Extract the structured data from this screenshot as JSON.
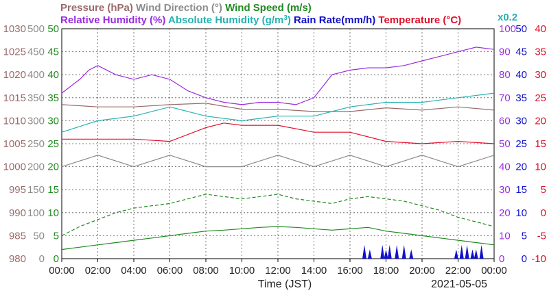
{
  "chart_data": {
    "type": "line",
    "date": "2021-05-05",
    "xlabel": "Time (JST)",
    "x_ticks": [
      "00:00",
      "02:00",
      "04:00",
      "06:00",
      "08:00",
      "10:00",
      "12:00",
      "14:00",
      "16:00",
      "18:00",
      "20:00",
      "22:00",
      "00:00"
    ],
    "grid": true,
    "legend_row1": [
      {
        "text": "Pressure (hPa)",
        "color": "#9a6a6a"
      },
      {
        "text": "Wind Direction (°)",
        "color": "#8c8c8c"
      },
      {
        "text": "Wind Speed (m/s)",
        "color": "#1f8a1f"
      }
    ],
    "legend_row2": [
      {
        "text": "Relative Humidity (%)",
        "color": "#9a2be0"
      },
      {
        "text": "Absolute Humidity (g/m",
        "color": "#26b2b2"
      },
      {
        "text": "3",
        "color": "#26b2b2"
      },
      {
        "text": ")",
        "color": "#26b2b2"
      },
      {
        "text": "Rain Rate(mm/h)",
        "color": "#1010cc"
      },
      {
        "text": "Temperature (°C)",
        "color": "#e0102a"
      }
    ],
    "scale_note": {
      "text": "x0.2",
      "color": "#26b2b2"
    },
    "axes": [
      {
        "id": "pressure",
        "color": "#9a6a6a",
        "side": "left",
        "ticks": [
          "1030",
          "1025",
          "1020",
          "1015",
          "1010",
          "1005",
          "1000",
          "995",
          "990",
          "985",
          "980"
        ],
        "range": [
          980,
          1030
        ]
      },
      {
        "id": "wind_direction",
        "color": "#8c8c8c",
        "side": "left",
        "ticks": [
          "500",
          "450",
          "400",
          "350",
          "300",
          "250",
          "200",
          "150",
          "100",
          "50",
          "0"
        ],
        "range": [
          0,
          500
        ]
      },
      {
        "id": "wind_speed",
        "color": "#1f8a1f",
        "side": "left",
        "ticks": [
          "50",
          "45",
          "40",
          "35",
          "30",
          "25",
          "20",
          "15",
          "10",
          "5",
          "0"
        ],
        "range": [
          0,
          50
        ]
      },
      {
        "id": "relative_humidity",
        "color": "#9a2be0",
        "side": "right",
        "ticks": [
          "100",
          "90",
          "80",
          "70",
          "60",
          "50",
          "40",
          "30",
          "20",
          "10",
          "0"
        ],
        "range": [
          0,
          100
        ]
      },
      {
        "id": "rain_rate",
        "color": "#1010cc",
        "side": "right",
        "ticks": [
          "50",
          "45",
          "40",
          "35",
          "30",
          "25",
          "20",
          "15",
          "10",
          "5",
          "0"
        ],
        "range": [
          0,
          50
        ]
      },
      {
        "id": "temperature",
        "color": "#e0102a",
        "side": "right",
        "ticks": [
          "40",
          "35",
          "30",
          "25",
          "20",
          "15",
          "10",
          "5",
          "0",
          "-5",
          "-10"
        ],
        "range": [
          -10,
          40
        ]
      }
    ],
    "series": [
      {
        "name": "Pressure (hPa)",
        "axis": "pressure",
        "color": "#9a6a6a",
        "style": "solid",
        "x": [
          0,
          2,
          4,
          6,
          8,
          10,
          12,
          14,
          16,
          18,
          20,
          22,
          24
        ],
        "y": [
          1013.5,
          1013.0,
          1013.0,
          1013.5,
          1013.8,
          1012.5,
          1012.5,
          1012.0,
          1012.0,
          1012.8,
          1012.3,
          1013.0,
          1012.3
        ]
      },
      {
        "name": "Wind Direction (°)",
        "axis": "wind_direction",
        "color": "#8c8c8c",
        "style": "solid",
        "x": [
          0,
          2,
          4,
          6,
          8,
          10,
          12,
          14,
          16,
          18,
          20,
          22,
          24
        ],
        "y": [
          200,
          225,
          200,
          225,
          200,
          200,
          225,
          200,
          225,
          200,
          225,
          200,
          225
        ]
      },
      {
        "name": "Wind Speed mean (m/s)",
        "axis": "wind_speed",
        "color": "#1f8a1f",
        "style": "solid",
        "x": [
          0,
          1,
          2,
          3,
          4,
          5,
          6,
          7,
          8,
          9,
          10,
          11,
          12,
          13,
          14,
          15,
          16,
          17,
          18,
          19,
          20,
          21,
          22,
          23,
          24
        ],
        "y": [
          2.0,
          2.5,
          3.0,
          3.5,
          4.0,
          4.5,
          5.0,
          5.5,
          6.0,
          6.2,
          6.5,
          6.8,
          7.0,
          6.8,
          6.5,
          6.2,
          6.5,
          6.8,
          6.0,
          5.5,
          5.0,
          4.5,
          4.0,
          3.5,
          3.0
        ]
      },
      {
        "name": "Wind Speed max (m/s)",
        "axis": "wind_speed",
        "color": "#1f8a1f",
        "style": "dashed",
        "x": [
          0,
          1,
          2,
          3,
          4,
          5,
          6,
          7,
          8,
          9,
          10,
          11,
          12,
          13,
          14,
          15,
          16,
          17,
          18,
          19,
          20,
          21,
          22,
          23,
          24
        ],
        "y": [
          5.0,
          7.0,
          8.5,
          10.0,
          11.0,
          11.5,
          12.0,
          13.0,
          14.0,
          13.5,
          13.0,
          13.5,
          14.0,
          13.0,
          12.5,
          12.0,
          13.0,
          13.5,
          13.0,
          12.5,
          11.5,
          10.5,
          9.0,
          8.0,
          7.0
        ]
      },
      {
        "name": "Relative Humidity (%)",
        "axis": "relative_humidity",
        "color": "#9a2be0",
        "style": "solid",
        "x": [
          0,
          1,
          1.5,
          2,
          3,
          4,
          5,
          6,
          7,
          8,
          9,
          10,
          11,
          12,
          13,
          14,
          15,
          16,
          17,
          18,
          19,
          20,
          21,
          22,
          23,
          24
        ],
        "y": [
          72,
          78,
          82,
          84,
          80,
          78,
          80,
          78,
          73,
          70,
          68,
          67,
          68,
          68,
          67,
          70,
          80,
          82,
          83,
          83,
          84,
          86,
          88,
          90,
          92,
          91
        ]
      },
      {
        "name": "Absolute Humidity (g/m3) x0.2",
        "axis": "relative_humidity",
        "color": "#26b2b2",
        "style": "solid",
        "x": [
          0,
          2,
          4,
          6,
          8,
          10,
          12,
          14,
          16,
          18,
          20,
          22,
          24
        ],
        "y": [
          55,
          60,
          62,
          66,
          62,
          60,
          62,
          62,
          66,
          68,
          68,
          70,
          72
        ]
      },
      {
        "name": "Temperature (°C)",
        "axis": "temperature",
        "color": "#e0102a",
        "style": "solid",
        "x": [
          0,
          2,
          4,
          6,
          8,
          9,
          10,
          12,
          14,
          16,
          18,
          20,
          22,
          24
        ],
        "y": [
          16,
          16,
          16,
          15.5,
          18.5,
          19.5,
          19,
          19,
          17.5,
          17.5,
          15.5,
          15,
          15.5,
          15
        ]
      },
      {
        "name": "Rain Rate(mm/h)",
        "axis": "rain_rate",
        "color": "#1010cc",
        "style": "bars",
        "x": [
          16.8,
          17.1,
          17.8,
          18.0,
          18.2,
          18.6,
          19.0,
          19.4,
          21.9,
          22.2,
          22.5,
          22.8,
          23.0,
          23.3
        ],
        "y": [
          3,
          2,
          3,
          2,
          3,
          3,
          3,
          2,
          2,
          3,
          3,
          2,
          2,
          3
        ]
      }
    ]
  }
}
